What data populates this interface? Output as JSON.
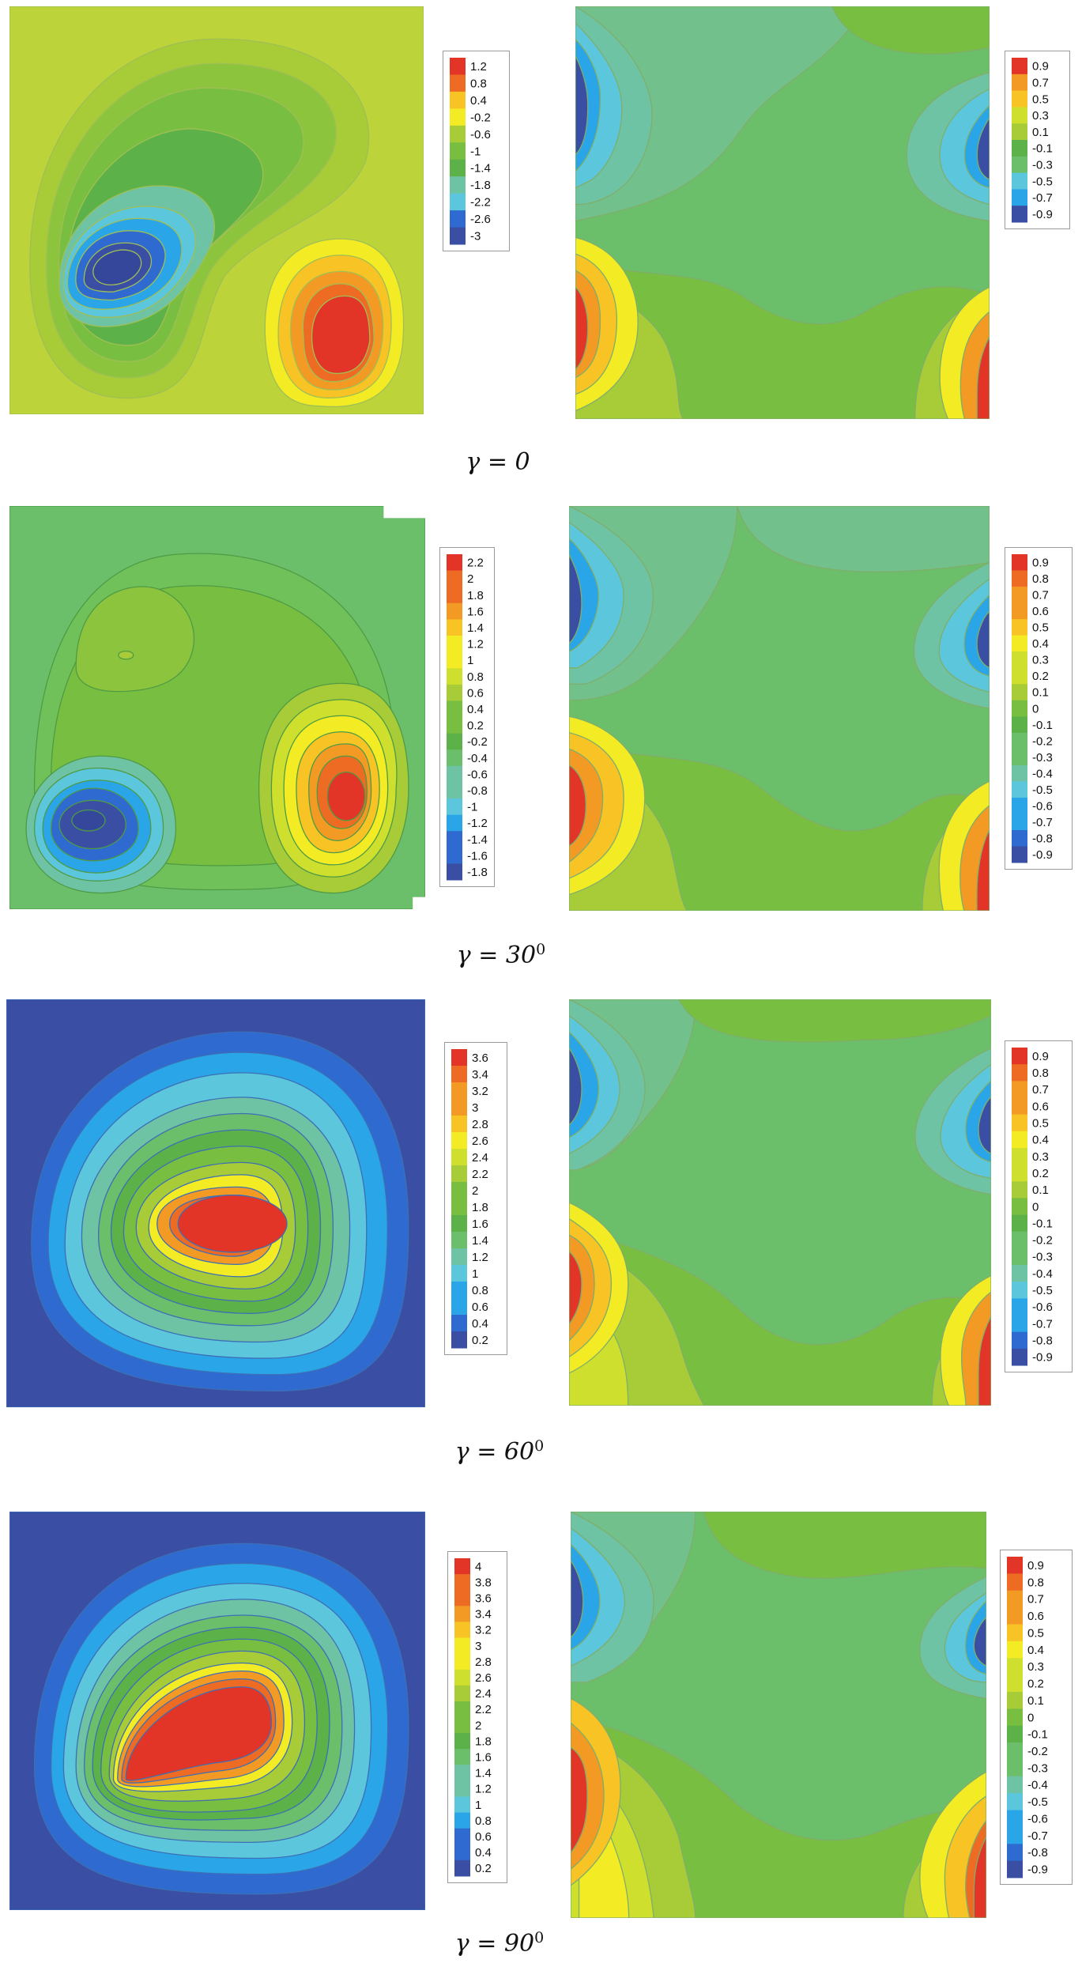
{
  "figure": {
    "palette": [
      "#3a4fa3",
      "#2f6ad0",
      "#2aa5e8",
      "#5cc7dc",
      "#6fc3a5",
      "#6cbf6a",
      "#5cb248",
      "#78bf41",
      "#a8cc37",
      "#cfdf2e",
      "#f3ec24",
      "#f7c325",
      "#f29a24",
      "#ed6b23",
      "#e23527"
    ],
    "rows": [
      {
        "caption": {
          "lhs": "γ = ",
          "value": "0",
          "sup": ""
        },
        "left_legend": [
          "1.2",
          "0.8",
          "0.4",
          "-0.2",
          "-0.6",
          "-1",
          "-1.4",
          "-1.8",
          "-2.2",
          "-2.6",
          "-3"
        ],
        "right_legend": [
          "0.9",
          "0.7",
          "0.5",
          "0.3",
          "0.1",
          "-0.1",
          "-0.3",
          "-0.5",
          "-0.7",
          "-0.9"
        ]
      },
      {
        "caption": {
          "lhs": "γ = ",
          "value": "30",
          "sup": "0"
        },
        "left_legend": [
          "2.2",
          "2",
          "1.8",
          "1.6",
          "1.4",
          "1.2",
          "1",
          "0.8",
          "0.6",
          "0.4",
          "0.2",
          "-0.2",
          "-0.4",
          "-0.6",
          "-0.8",
          "-1",
          "-1.2",
          "-1.4",
          "-1.6",
          "-1.8"
        ],
        "right_legend": [
          "0.9",
          "0.8",
          "0.7",
          "0.6",
          "0.5",
          "0.4",
          "0.3",
          "0.2",
          "0.1",
          "0",
          "-0.1",
          "-0.2",
          "-0.3",
          "-0.4",
          "-0.5",
          "-0.6",
          "-0.7",
          "-0.8",
          "-0.9"
        ]
      },
      {
        "caption": {
          "lhs": "γ = ",
          "value": "60",
          "sup": "0"
        },
        "left_legend": [
          "3.6",
          "3.4",
          "3.2",
          "3",
          "2.8",
          "2.6",
          "2.4",
          "2.2",
          "2",
          "1.8",
          "1.6",
          "1.4",
          "1.2",
          "1",
          "0.8",
          "0.6",
          "0.4",
          "0.2"
        ],
        "right_legend": [
          "0.9",
          "0.8",
          "0.7",
          "0.6",
          "0.5",
          "0.4",
          "0.3",
          "0.2",
          "0.1",
          "0",
          "-0.1",
          "-0.2",
          "-0.3",
          "-0.4",
          "-0.5",
          "-0.6",
          "-0.7",
          "-0.8",
          "-0.9"
        ]
      },
      {
        "caption": {
          "lhs": "γ = ",
          "value": "90",
          "sup": "0"
        },
        "left_legend": [
          "4",
          "3.8",
          "3.6",
          "3.4",
          "3.2",
          "3",
          "2.8",
          "2.6",
          "2.4",
          "2.2",
          "2",
          "1.8",
          "1.6",
          "1.4",
          "1.2",
          "1",
          "0.8",
          "0.6",
          "0.4",
          "0.2"
        ],
        "right_legend": [
          "0.9",
          "0.8",
          "0.7",
          "0.6",
          "0.5",
          "0.4",
          "0.3",
          "0.2",
          "0.1",
          "0",
          "-0.1",
          "-0.2",
          "-0.3",
          "-0.4",
          "-0.5",
          "-0.6",
          "-0.7",
          "-0.8",
          "-0.9"
        ]
      }
    ]
  }
}
